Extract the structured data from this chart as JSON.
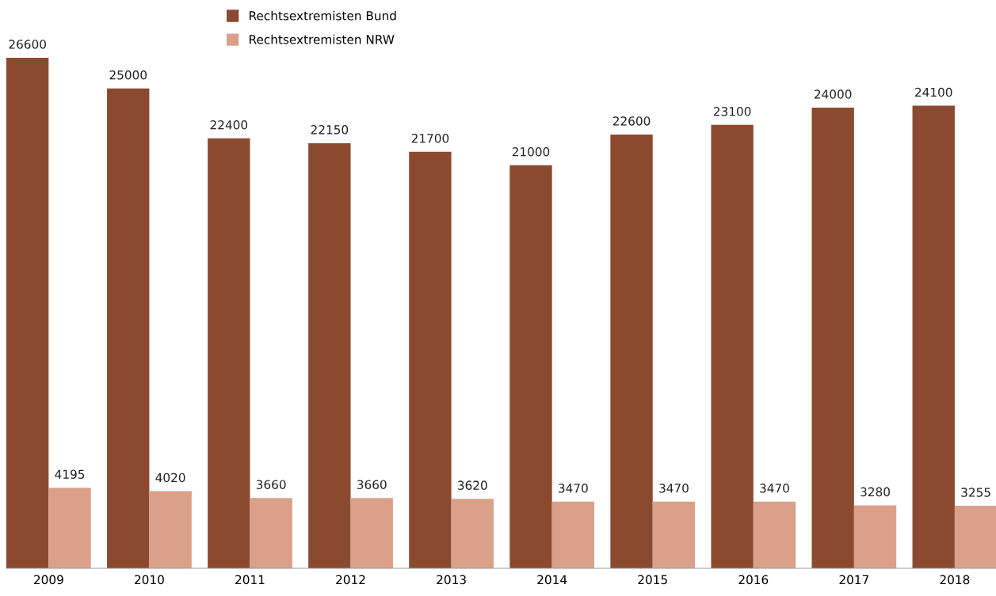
{
  "chart_data": {
    "type": "bar",
    "categories": [
      "2009",
      "2010",
      "2011",
      "2012",
      "2013",
      "2014",
      "2015",
      "2016",
      "2017",
      "2018"
    ],
    "series": [
      {
        "name": "Rechtsextremisten Bund",
        "color": "#8b4a2f",
        "values": [
          26600,
          25000,
          22400,
          22150,
          21700,
          21000,
          22600,
          23100,
          24000,
          24100
        ]
      },
      {
        "name": "Rechtsextremisten NRW",
        "color": "#dba08a",
        "values": [
          4195,
          4020,
          3660,
          3660,
          3620,
          3470,
          3470,
          3470,
          3280,
          3255
        ]
      }
    ],
    "data_labels": true,
    "legend": "top",
    "grid": false
  }
}
